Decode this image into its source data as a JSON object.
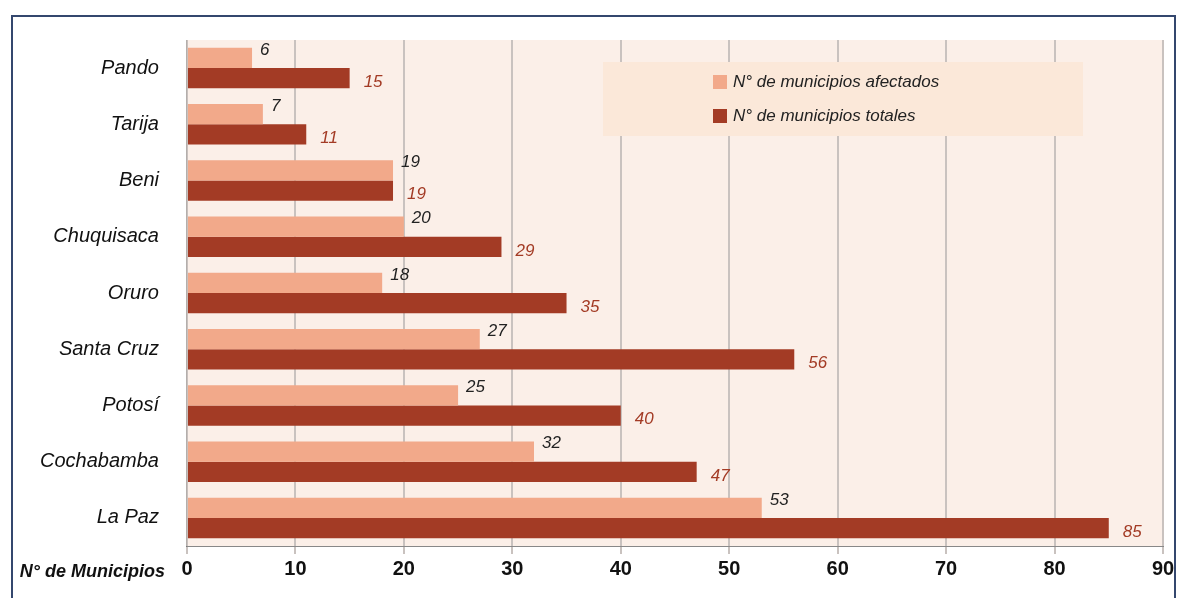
{
  "chart_data": {
    "type": "bar",
    "orientation": "horizontal",
    "xlabel": "N° de Municipios",
    "categories": [
      "Pando",
      "Tarija",
      "Beni",
      "Chuquisaca",
      "Oruro",
      "Santa Cruz",
      "Potosí",
      "Cochabamba",
      "La Paz"
    ],
    "series": [
      {
        "name": "N° de municipios afectados",
        "color": "#f2a98a",
        "values": [
          6,
          7,
          19,
          20,
          18,
          27,
          25,
          32,
          53
        ]
      },
      {
        "name": "N° de municipios totales",
        "color": "#a33b25",
        "values": [
          15,
          11,
          19,
          29,
          35,
          56,
          40,
          47,
          85
        ]
      }
    ],
    "xlim": [
      0,
      90
    ],
    "xticks": [
      0,
      10,
      20,
      30,
      40,
      50,
      60,
      70,
      80,
      90
    ],
    "grid": "x",
    "legend": "top right",
    "data_labels": true
  }
}
